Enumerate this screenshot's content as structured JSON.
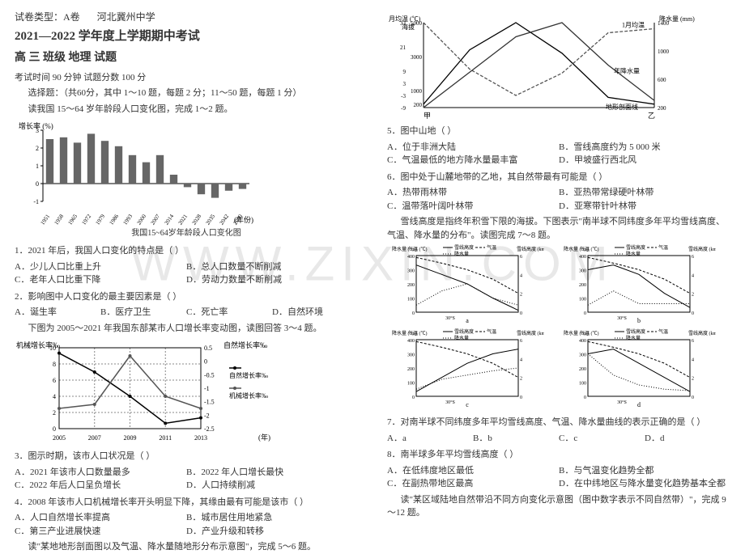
{
  "header": {
    "paper_type": "试卷类型：A卷",
    "school": "河北冀州中学",
    "term": "2021—2022 学年度上学期期中考试",
    "subject": "高 三 班级 地理 试题",
    "timing": "考试时间 90 分钟    试题分数 100 分",
    "mc_note": "选择题：（共60分，其中 1～10 题，每题 2 分；11～50 题，每题 1 分）",
    "lead1": "读我国 15～64 岁年龄段人口变化图，完成 1～2 题。"
  },
  "chart1": {
    "ylabel": "增长率 (%)",
    "xlabel": "(年份)",
    "years": [
      1951,
      1958,
      1965,
      1972,
      1979,
      1986,
      1993,
      2000,
      2007,
      2014,
      2021,
      2028,
      2035,
      2042,
      2050
    ],
    "values": [
      2.5,
      2.6,
      2.3,
      2.8,
      2.4,
      2.1,
      1.6,
      1.2,
      1.6,
      0.5,
      -0.2,
      -0.6,
      -0.8,
      -0.4,
      -0.3
    ],
    "caption": "我国15~64岁年龄段人口变化图",
    "bar_color": "#666666",
    "axis_color": "#000000"
  },
  "q1": {
    "stem": "1．2021 年后，我国人口变化的特点是（   ）",
    "opts": [
      "A．少儿人口比重上升",
      "B．总人口数量不断削减",
      "C．老年人口比重下降",
      "D．劳动力数量不断削减"
    ]
  },
  "q2": {
    "stem": "2．影响图中人口变化的最主要因素是（   ）",
    "opts": [
      "A．诞生率",
      "B．医疗卫生",
      "C．死亡率",
      "D．自然环境"
    ],
    "lead2": "下图为 2005～2021 年我国东部某市人口增长率变动图，读图回答 3～4 题。"
  },
  "chart2": {
    "yl_label": "机械增长率‰",
    "yr_label": "自然增长率‰",
    "xlabel": "(年)",
    "yl_max": 10,
    "yl_min": 0,
    "yr_max": 0.5,
    "yr_min": -2.5,
    "years": [
      2005,
      2007,
      2009,
      2011,
      2013
    ],
    "nat": [
      0.3,
      -0.4,
      -1.3,
      -2.3,
      -2.1
    ],
    "mech": [
      2.5,
      3.0,
      9.0,
      4.0,
      2.5
    ],
    "legend_nat": "自然增长率‰",
    "legend_mech": "机械增长率‰",
    "grid_color": "#888888",
    "line_nat_color": "#000000",
    "line_mech_color": "#555555"
  },
  "q3": {
    "stem": "3．图示时期，该市人口状况是（   ）",
    "opts": [
      "A．2021 年该市人口数量最多",
      "B．2022 年人口增长最快",
      "C．2022 年后人口呈负增长",
      "D．人口持续削减"
    ]
  },
  "q4": {
    "stem": "4．2008 年该市人口机械增长率开头明显下降，其缘由最有可能是该市（   ）",
    "opts": [
      "A．人口自然增长率提高",
      "B．城市居住用地紧急",
      "C．第三产业进展快速",
      "D．产业升级和转移"
    ],
    "lead3": "读\"某地地形剖面图以及气温、降水量随地形分布示意图\"，完成 5～6 题。"
  },
  "chart3": {
    "labels": {
      "yl_top": "月均温 (℃)",
      "yl_bot": "海拔",
      "yr": "降水量 (mm)",
      "line_temp": "1月均温",
      "line_precip": "年降水量",
      "line_terrain": "地形剖面线"
    },
    "xl": "甲",
    "xr": "乙",
    "temp_scale": [
      -9,
      -3,
      3,
      9,
      21,
      33
    ],
    "elev_scale": [
      200,
      1000,
      3000,
      5000
    ],
    "precip_scale": [
      200,
      600,
      1000,
      1400
    ],
    "terrain_pts": [
      200,
      3400,
      5000,
      3200,
      600,
      200
    ],
    "temp_pts": [
      33,
      10,
      -3,
      8,
      28,
      30
    ],
    "precip_pts": [
      200,
      700,
      1200,
      1400,
      800,
      300
    ],
    "terrain_color": "#000000",
    "temp_color": "#555555",
    "precip_color": "#333333",
    "temp_dash": "4,2",
    "precip_dash": "0"
  },
  "q5": {
    "stem": "5．图中山地（   ）",
    "opts": [
      "A．位于非洲大陆",
      "B．雪线高度约为 5 000 米",
      "C．气温最低的地方降水量最丰富",
      "D．甲坡盛行西北风"
    ]
  },
  "q6": {
    "stem": "6．图中处于山麓地带的乙地，其自然带最有可能是（   ）",
    "opts": [
      "A．热带雨林带",
      "B．亚热带常绿硬叶林带",
      "C．温带落叶阔叶林带",
      "D．亚寒带针叶林带"
    ],
    "lead4": "雪线高度是指终年积雪下限的海拔。下图表示\"南半球不同纬度多年平均雪线高度、气温、降水量的分布\"。读图完成 7～8 题。"
  },
  "mini_legend": {
    "l1": "雪线高度",
    "l2": "气温",
    "l3": "降水量",
    "yl_p": "降水量 (cm)",
    "yl_t": "气温 (℃)",
    "yr_h": "雪线高度 (km)",
    "xaxis": "30°S"
  },
  "mini_charts": [
    {
      "id": "a",
      "precip": [
        50,
        150,
        200,
        100,
        50
      ],
      "temp": [
        28,
        22,
        15,
        5,
        -10
      ],
      "snow": [
        5,
        4,
        3,
        1.5,
        0.2
      ]
    },
    {
      "id": "b",
      "precip": [
        50,
        150,
        60,
        60,
        60
      ],
      "temp": [
        28,
        22,
        15,
        5,
        -10
      ],
      "snow": [
        4.5,
        5,
        4,
        2,
        0.5
      ]
    },
    {
      "id": "c",
      "precip": [
        50,
        120,
        150,
        180,
        200
      ],
      "temp": [
        28,
        22,
        15,
        5,
        -10
      ],
      "snow": [
        0.5,
        2,
        3.5,
        4.5,
        5
      ]
    },
    {
      "id": "d",
      "precip": [
        300,
        150,
        80,
        50,
        40
      ],
      "temp": [
        28,
        22,
        15,
        5,
        -10
      ],
      "snow": [
        4.5,
        5,
        3.5,
        2,
        0.5
      ]
    }
  ],
  "q7": {
    "stem": "7．对南半球不同纬度多年平均雪线高度、气温、降水量曲线的表示正确的是（   ）",
    "opts": [
      "A．a",
      "B．b",
      "C．c",
      "D．d"
    ]
  },
  "q8": {
    "stem": "8．南半球多年平均雪线高度（   ）",
    "opts": [
      "A．在低纬度地区最低",
      "B．与气温变化趋势全都",
      "C．在副热带地区最高",
      "D．在中纬地区与降水量变化趋势基本全都"
    ],
    "lead5": "读\"某区域陆地自然带沿不同方向变化示意图（图中数字表示不同自然带）\"，完成 9～12 题。"
  },
  "colors": {
    "text": "#333333",
    "axis": "#000000",
    "grid": "#888888",
    "bg": "#ffffff"
  }
}
